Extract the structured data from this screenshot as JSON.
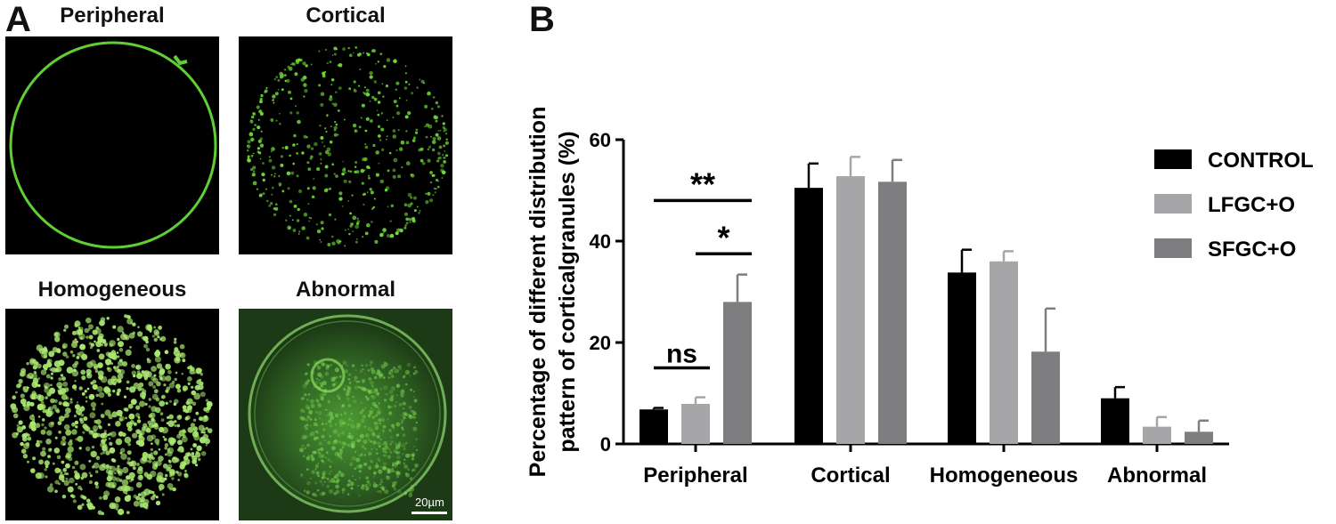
{
  "panel_a": {
    "letter": "A",
    "images": [
      {
        "title": "Peripheral",
        "pattern": "peripheral"
      },
      {
        "title": "Cortical",
        "pattern": "cortical"
      },
      {
        "title": "Homogeneous",
        "pattern": "homogeneous"
      },
      {
        "title": "Abnormal",
        "pattern": "abnormal"
      }
    ],
    "scale_bar_label": "20µm",
    "colors": {
      "fluorescence": "#6fd83a",
      "background": "#000000",
      "abnormal_bg": "#1d3a17"
    }
  },
  "panel_b": {
    "letter": "B"
  },
  "chart_data": {
    "type": "bar",
    "ylabel_lines": [
      "Percentage of different distribution",
      "pattern of corticalgranules (%)"
    ],
    "ylim": [
      0,
      60
    ],
    "yticks": [
      0,
      20,
      40,
      60
    ],
    "categories": [
      "Peripheral",
      "Cortical",
      "Homogeneous",
      "Abnormal"
    ],
    "series": [
      {
        "name": "CONTROL",
        "color": "#000000",
        "values": [
          6.8,
          50.5,
          33.8,
          9.0
        ],
        "errors": [
          0.3,
          4.8,
          4.5,
          2.2
        ]
      },
      {
        "name": "LFGC+O",
        "color": "#a6a6a8",
        "values": [
          7.9,
          52.8,
          36.0,
          3.4
        ],
        "errors": [
          1.3,
          3.8,
          2.0,
          1.9
        ]
      },
      {
        "name": "SFGC+O",
        "color": "#7e7e80",
        "values": [
          28.0,
          51.7,
          18.2,
          2.4
        ],
        "errors": [
          5.4,
          4.3,
          8.5,
          2.2
        ]
      }
    ],
    "legend_position": "right",
    "annotations": [
      {
        "text": "ns",
        "category": 0,
        "from_series": 0,
        "to_series": 1,
        "level": 15
      },
      {
        "text": "**",
        "category": 0,
        "from_series": 0,
        "to_series": 2,
        "level": 48
      },
      {
        "text": "*",
        "category": 0,
        "from_series": 1,
        "to_series": 2,
        "level": 37.5
      }
    ]
  }
}
